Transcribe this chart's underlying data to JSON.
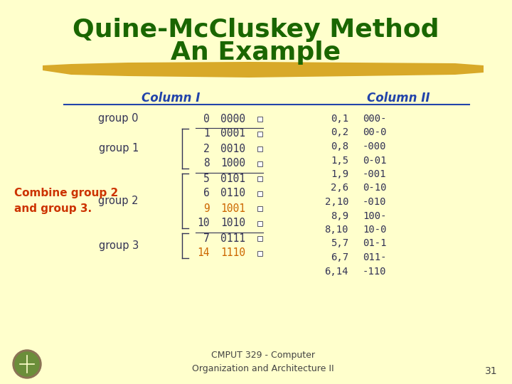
{
  "bg_color": "#FFFFCC",
  "title_line1": "Quine-McCluskey Method",
  "title_line2": "An Example",
  "title_color": "#1a6600",
  "title_fontsize": 26,
  "col1_header": "Column I",
  "col2_header": "Column II",
  "header_color": "#2244aa",
  "header_fontsize": 12,
  "combine_text": "Combine group 2\nand group 3.",
  "combine_color": "#cc3300",
  "combine_fontsize": 11,
  "footer_text": "CMPUT 329 - Computer\nOrganization and Architecture II",
  "footer_color": "#444444",
  "footer_fontsize": 9,
  "page_num": "31",
  "brush_color": "#D4A017",
  "dark_text": "#333355",
  "orange_text": "#cc6600",
  "col1_groups": {
    "group 0": [
      {
        "num": "0",
        "bits": "0000",
        "color": "#333355"
      }
    ],
    "group 1": [
      {
        "num": "1",
        "bits": "0001",
        "color": "#333355"
      },
      {
        "num": "2",
        "bits": "0010",
        "color": "#333355"
      },
      {
        "num": "8",
        "bits": "1000",
        "color": "#333355"
      }
    ],
    "group 2": [
      {
        "num": "5",
        "bits": "0101",
        "color": "#333355"
      },
      {
        "num": "6",
        "bits": "0110",
        "color": "#333355"
      },
      {
        "num": "9",
        "bits": "1001",
        "color": "#cc6600"
      },
      {
        "num": "10",
        "bits": "1010",
        "color": "#333355"
      }
    ],
    "group 3": [
      {
        "num": "7",
        "bits": "0111",
        "color": "#333355"
      },
      {
        "num": "14",
        "bits": "1110",
        "color": "#cc6600"
      }
    ]
  },
  "col2_entries": [
    {
      "nums": "0,1",
      "bits": "000-"
    },
    {
      "nums": "0,2",
      "bits": "00-0"
    },
    {
      "nums": "0,8",
      "bits": "-000"
    },
    {
      "nums": "1,5",
      "bits": "0-01"
    },
    {
      "nums": "1,9",
      "bits": "-001"
    },
    {
      "nums": "2,6",
      "bits": "0-10"
    },
    {
      "nums": "2,10",
      "bits": "-010"
    },
    {
      "nums": "8,9",
      "bits": "100-"
    },
    {
      "nums": "8,10",
      "bits": "10-0"
    },
    {
      "nums": "5,7",
      "bits": "01-1"
    },
    {
      "nums": "6,7",
      "bits": "011-"
    },
    {
      "nums": "6,14",
      "bits": "-110"
    }
  ],
  "col2_color": "#333355"
}
